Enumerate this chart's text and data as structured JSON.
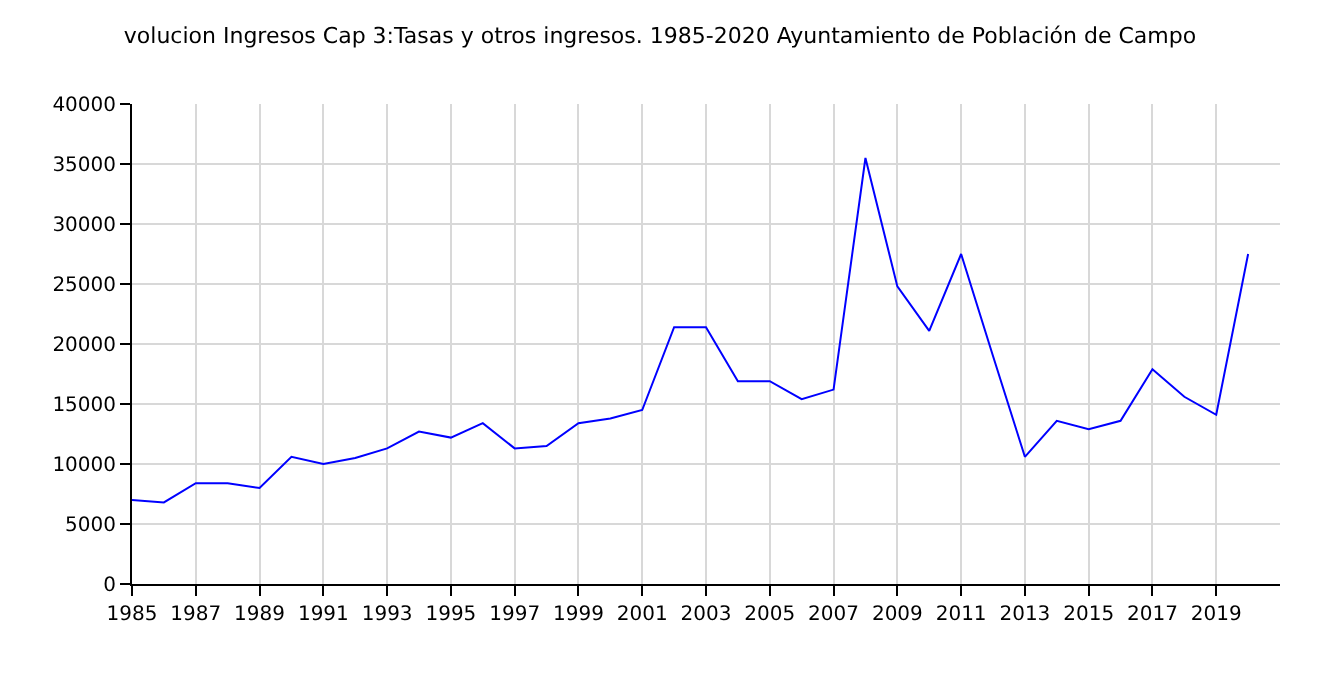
{
  "chart_data": {
    "type": "line",
    "title": "volucion Ingresos Cap 3:Tasas y otros ingresos. 1985-2020 Ayuntamiento de Población de Campo",
    "x": [
      1985,
      1986,
      1987,
      1988,
      1989,
      1990,
      1991,
      1992,
      1993,
      1994,
      1995,
      1996,
      1997,
      1998,
      1999,
      2000,
      2001,
      2002,
      2003,
      2004,
      2005,
      2006,
      2007,
      2008,
      2009,
      2010,
      2011,
      2012,
      2013,
      2014,
      2015,
      2016,
      2017,
      2018,
      2019,
      2020
    ],
    "series": [
      {
        "color": "#0000ff",
        "values": [
          7000,
          6800,
          8400,
          8400,
          8000,
          10600,
          10000,
          10500,
          11300,
          12700,
          12200,
          13400,
          11300,
          11500,
          13400,
          13800,
          14500,
          21400,
          21400,
          16900,
          16900,
          15400,
          16200,
          35500,
          24800,
          21100,
          27500,
          19000,
          10600,
          13600,
          12900,
          13600,
          17900,
          15600,
          14100,
          27500
        ]
      }
    ],
    "xlim": [
      1985,
      2021
    ],
    "xticks": [
      1985,
      1987,
      1989,
      1991,
      1993,
      1995,
      1997,
      1999,
      2001,
      2003,
      2005,
      2007,
      2009,
      2011,
      2013,
      2015,
      2017,
      2019
    ],
    "ylim": [
      0,
      40000
    ],
    "yticks": [
      0,
      5000,
      10000,
      15000,
      20000,
      25000,
      30000,
      35000,
      40000
    ],
    "grid": true,
    "marker": "none",
    "line_style": "solid"
  }
}
